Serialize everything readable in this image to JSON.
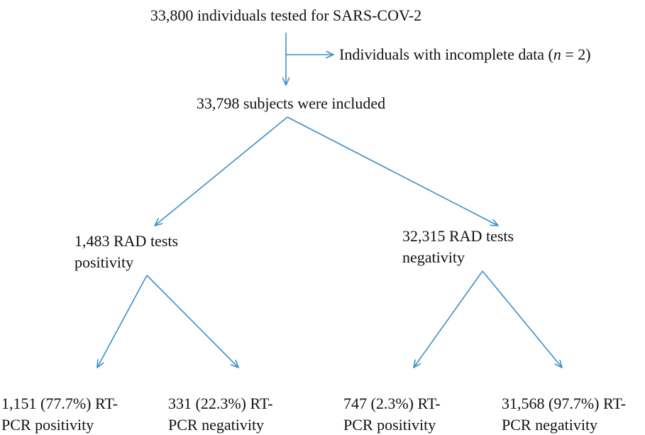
{
  "nodes": [
    {
      "lines": [
        "33,800 individuals tested for SARS-COV-2"
      ]
    },
    {
      "label_parts": [
        "Individuals with incomplete data (",
        "n",
        " = 2)"
      ]
    },
    {
      "lines": [
        "33,798 subjects were included"
      ]
    },
    {
      "lines": [
        "1,483 RAD tests",
        "positivity"
      ]
    },
    {
      "lines": [
        "32,315 RAD tests",
        "negativity"
      ]
    },
    {
      "lines": [
        "1,151 (77.7%) RT-",
        "PCR positivity"
      ]
    },
    {
      "lines": [
        "331 (22.3%) RT-",
        "PCR negativity"
      ]
    },
    {
      "lines": [
        "747 (2.3%) RT-",
        "PCR positivity"
      ]
    },
    {
      "lines": [
        "31,568 (97.7%) RT-",
        "PCR negativity"
      ]
    }
  ]
}
